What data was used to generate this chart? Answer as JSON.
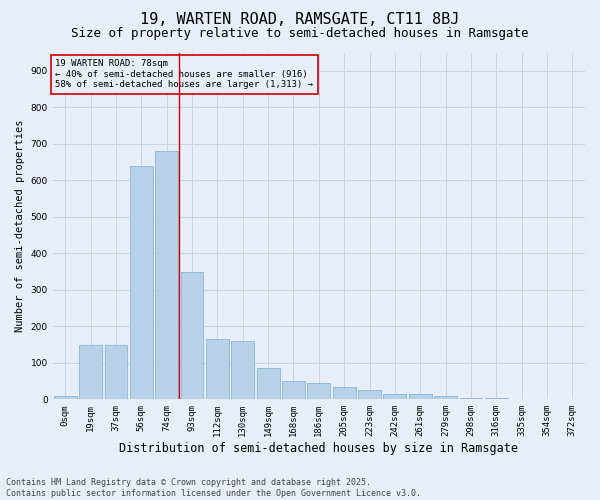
{
  "title1": "19, WARTEN ROAD, RAMSGATE, CT11 8BJ",
  "title2": "Size of property relative to semi-detached houses in Ramsgate",
  "xlabel": "Distribution of semi-detached houses by size in Ramsgate",
  "ylabel": "Number of semi-detached properties",
  "categories": [
    "0sqm",
    "19sqm",
    "37sqm",
    "56sqm",
    "74sqm",
    "93sqm",
    "112sqm",
    "130sqm",
    "149sqm",
    "168sqm",
    "186sqm",
    "205sqm",
    "223sqm",
    "242sqm",
    "261sqm",
    "279sqm",
    "298sqm",
    "316sqm",
    "335sqm",
    "354sqm",
    "372sqm"
  ],
  "bar_values": [
    10,
    150,
    150,
    640,
    680,
    350,
    165,
    160,
    85,
    50,
    45,
    35,
    25,
    15,
    15,
    10,
    5,
    3,
    1,
    1,
    0
  ],
  "bar_color": "#b8d0e8",
  "bar_edge_color": "#7aafd4",
  "grid_color": "#c8d4e4",
  "bg_color": "#e8eef8",
  "annotation_box_color": "#cc0000",
  "vline_color": "#cc0000",
  "vline_x": 4.5,
  "ylim": [
    0,
    950
  ],
  "yticks": [
    0,
    100,
    200,
    300,
    400,
    500,
    600,
    700,
    800,
    900
  ],
  "annotation_title": "19 WARTEN ROAD: 78sqm",
  "annotation_line1": "← 40% of semi-detached houses are smaller (916)",
  "annotation_line2": "58% of semi-detached houses are larger (1,313) →",
  "footnote1": "Contains HM Land Registry data © Crown copyright and database right 2025.",
  "footnote2": "Contains public sector information licensed under the Open Government Licence v3.0.",
  "title1_fontsize": 11,
  "title2_fontsize": 9,
  "xlabel_fontsize": 8.5,
  "ylabel_fontsize": 7.5,
  "tick_fontsize": 6.5,
  "annotation_fontsize": 6.5,
  "footnote_fontsize": 6.0
}
